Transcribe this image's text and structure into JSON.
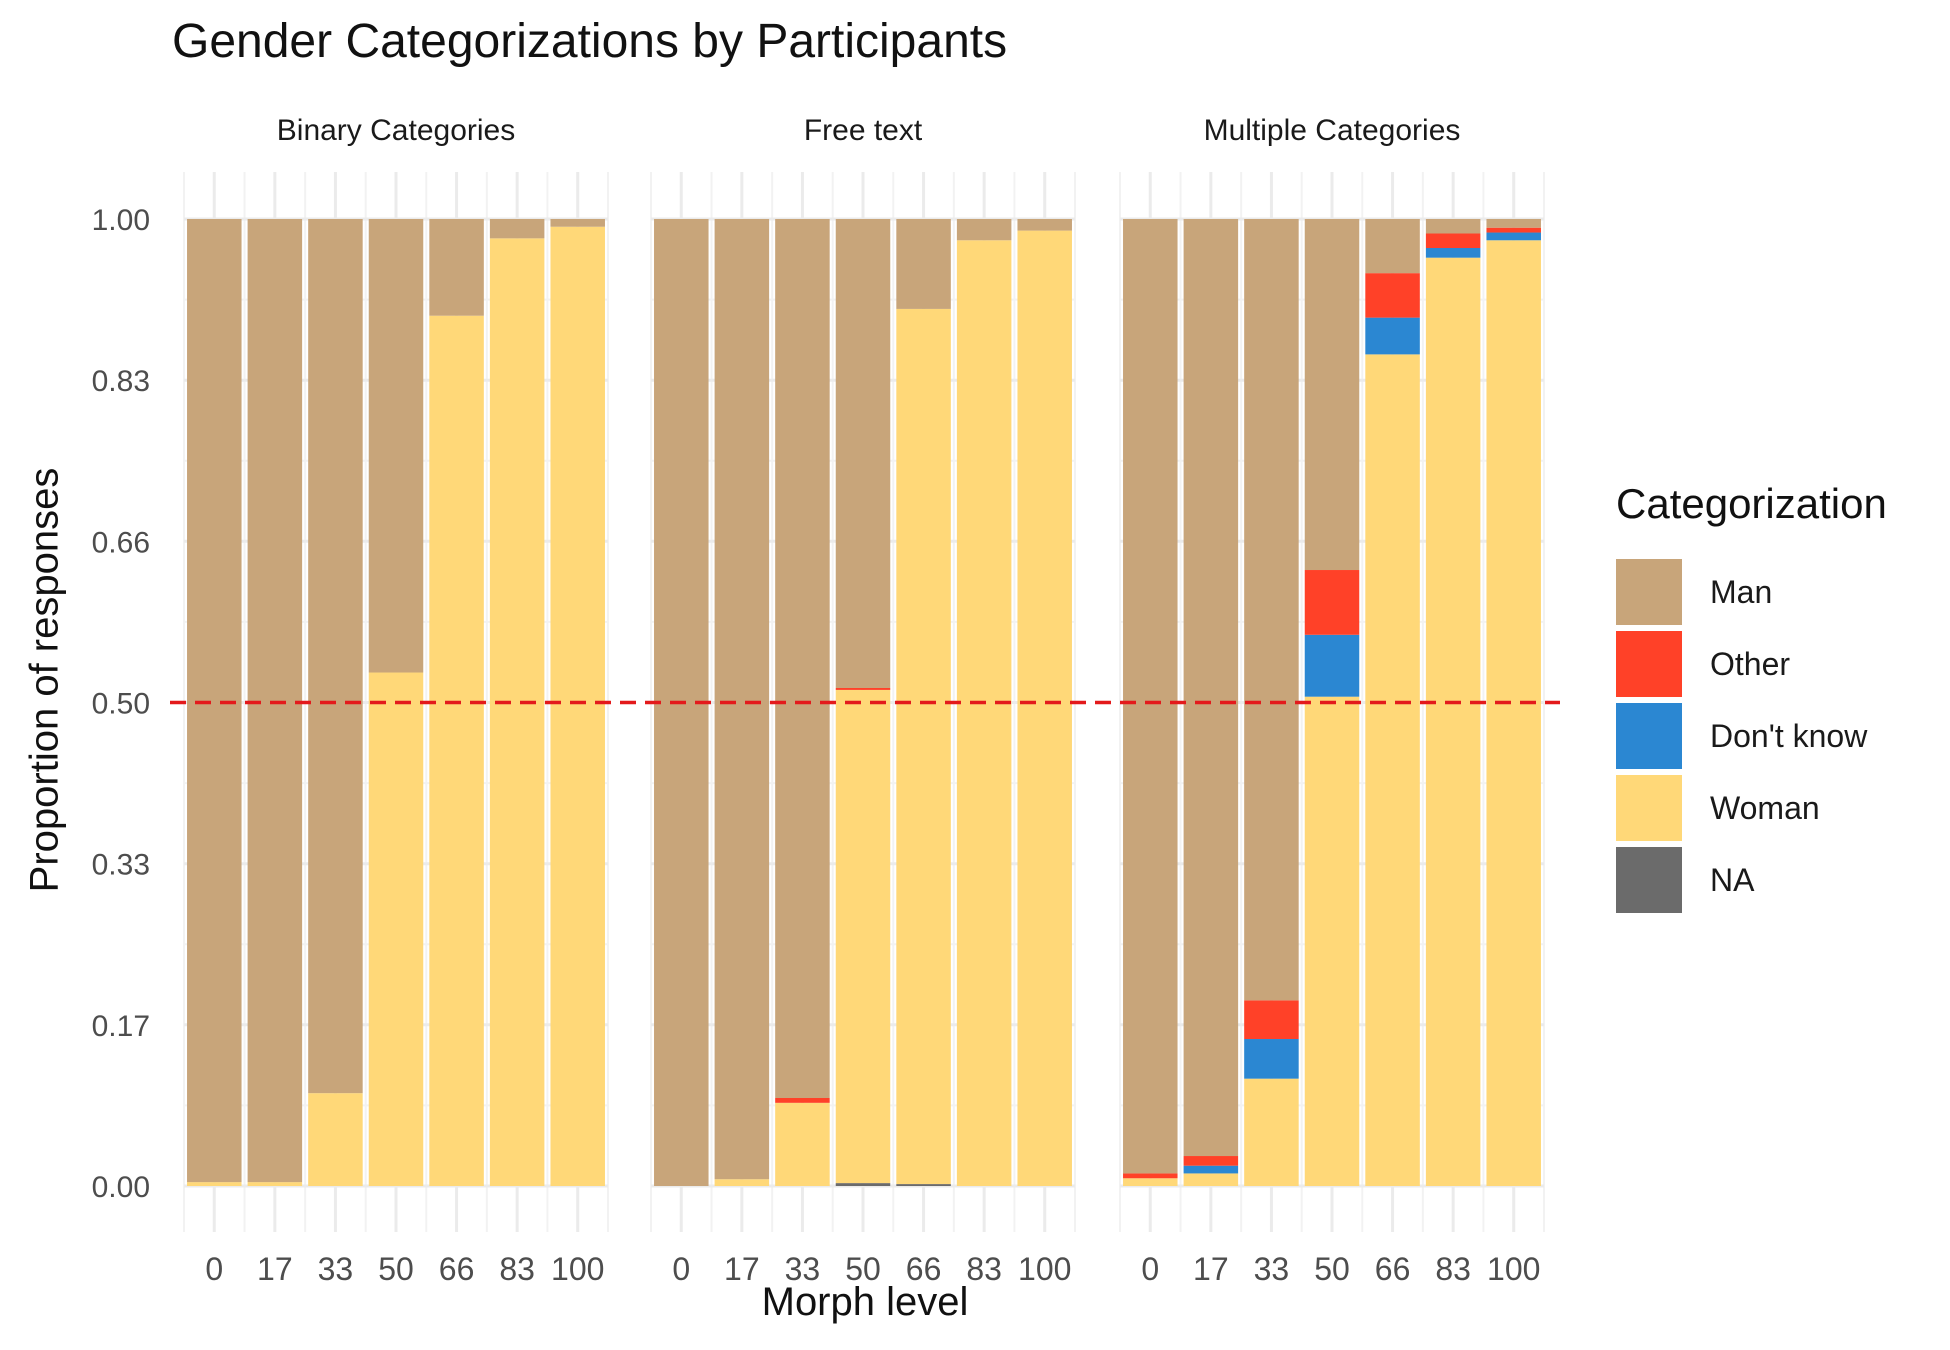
{
  "chart_data": {
    "type": "bar",
    "title": "Gender Categorizations by Participants",
    "xlabel": "Morph level",
    "ylabel": "Proportion of responses",
    "ylim": [
      0,
      1
    ],
    "yticks": [
      "0.00",
      "0.17",
      "0.33",
      "0.50",
      "0.66",
      "0.83",
      "1.00"
    ],
    "ytick_values": [
      0,
      0.1667,
      0.3333,
      0.5,
      0.6667,
      0.8333,
      1.0
    ],
    "categories": [
      "0",
      "17",
      "33",
      "50",
      "66",
      "83",
      "100"
    ],
    "stacked": true,
    "reference_line": {
      "y": 0.5,
      "style": "dashed",
      "color": "#e31a1c"
    },
    "grid": true,
    "legend": {
      "title": "Categorization",
      "position": "right",
      "items": [
        {
          "name": "Man",
          "color": "#c8a57a"
        },
        {
          "name": "Other",
          "color": "#ff4128"
        },
        {
          "name": "Don't know",
          "color": "#2b87d2"
        },
        {
          "name": "Woman",
          "color": "#ffd878"
        },
        {
          "name": "NA",
          "color": "#6b6b6b"
        }
      ]
    },
    "stack_order": [
      "NA",
      "Woman",
      "Don't know",
      "Other",
      "Man"
    ],
    "panels": [
      {
        "name": "Binary Categories",
        "series": [
          {
            "name": "Woman",
            "values": [
              0.004,
              0.004,
              0.096,
              0.531,
              0.9,
              0.98,
              0.992
            ]
          },
          {
            "name": "Man",
            "values": [
              0.996,
              0.996,
              0.904,
              0.469,
              0.1,
              0.02,
              0.008
            ]
          }
        ]
      },
      {
        "name": "Free text",
        "series": [
          {
            "name": "NA",
            "values": [
              0.0,
              0.0,
              0.0,
              0.003,
              0.002,
              0.0,
              0.0
            ]
          },
          {
            "name": "Woman",
            "values": [
              0.0,
              0.007,
              0.086,
              0.51,
              0.905,
              0.978,
              0.988
            ]
          },
          {
            "name": "Other",
            "values": [
              0.0,
              0.0,
              0.005,
              0.002,
              0.0,
              0.0,
              0.0
            ]
          },
          {
            "name": "Man",
            "values": [
              1.0,
              0.993,
              0.909,
              0.485,
              0.093,
              0.022,
              0.012
            ]
          }
        ]
      },
      {
        "name": "Multiple Categories",
        "series": [
          {
            "name": "Woman",
            "values": [
              0.008,
              0.013,
              0.111,
              0.506,
              0.86,
              0.96,
              0.978
            ]
          },
          {
            "name": "Don't know",
            "values": [
              0.0,
              0.008,
              0.041,
              0.064,
              0.038,
              0.01,
              0.008
            ]
          },
          {
            "name": "Other",
            "values": [
              0.005,
              0.01,
              0.04,
              0.067,
              0.046,
              0.015,
              0.005
            ]
          },
          {
            "name": "Man",
            "values": [
              0.987,
              0.969,
              0.808,
              0.363,
              0.056,
              0.015,
              0.009
            ]
          }
        ]
      }
    ]
  }
}
